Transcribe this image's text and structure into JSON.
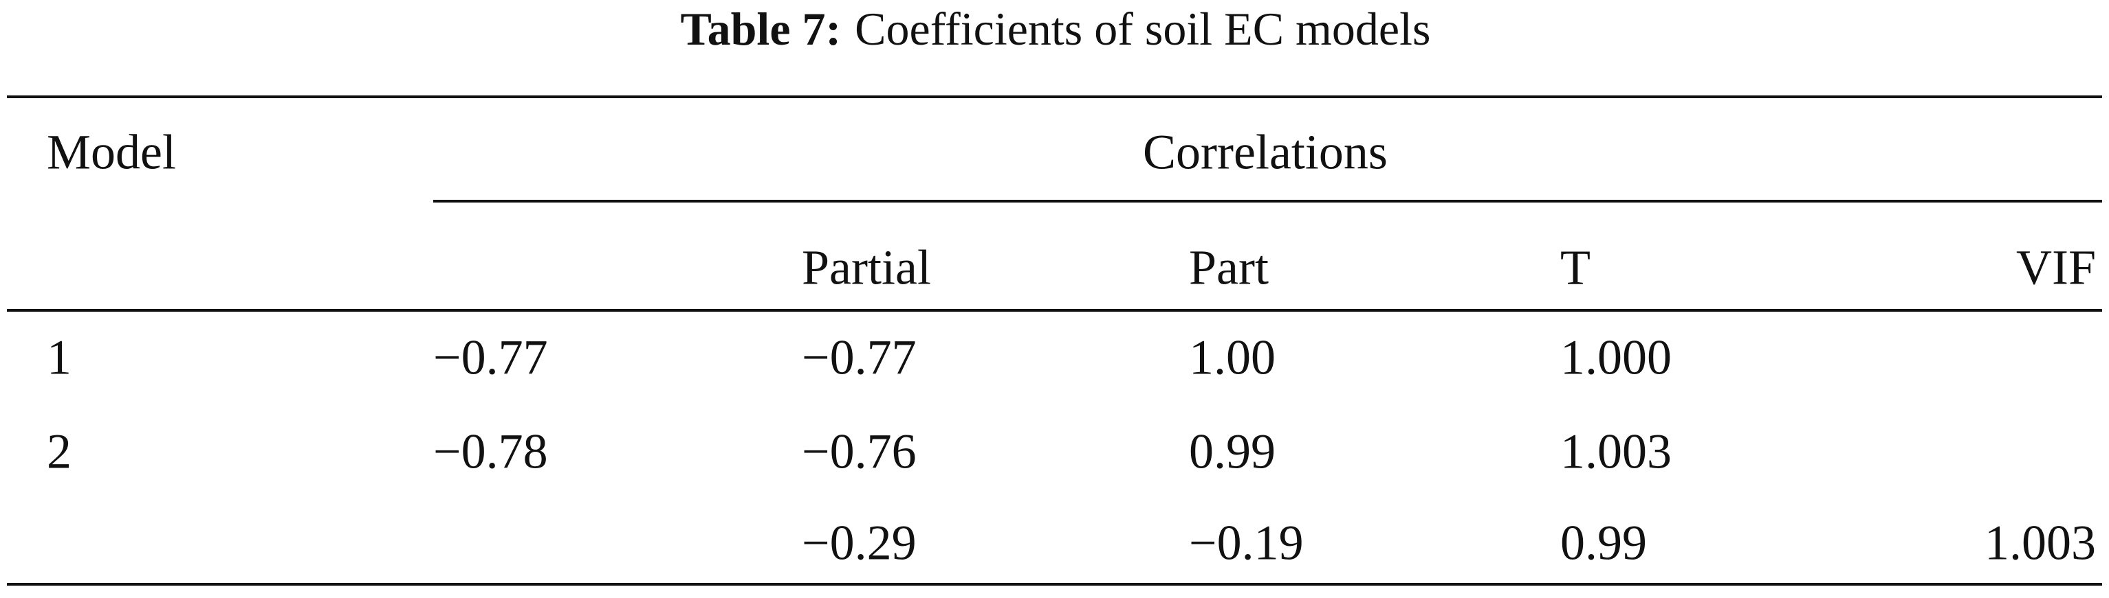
{
  "title": {
    "label": "Table 7:",
    "text": "Coefficients of soil EC models"
  },
  "table": {
    "header": [
      "Model",
      "Correlations"
    ],
    "subheader": [
      null,
      null,
      "Partial",
      "Part",
      "T",
      "VIF"
    ],
    "rows": [
      [
        "1",
        "−0.77",
        "−0.77",
        "1.00",
        "1.000",
        null
      ],
      [
        "2",
        "−0.78",
        "−0.76",
        "0.99",
        "1.003",
        null
      ],
      [
        null,
        null,
        "−0.29",
        "−0.19",
        "0.99",
        "1.003"
      ]
    ]
  }
}
